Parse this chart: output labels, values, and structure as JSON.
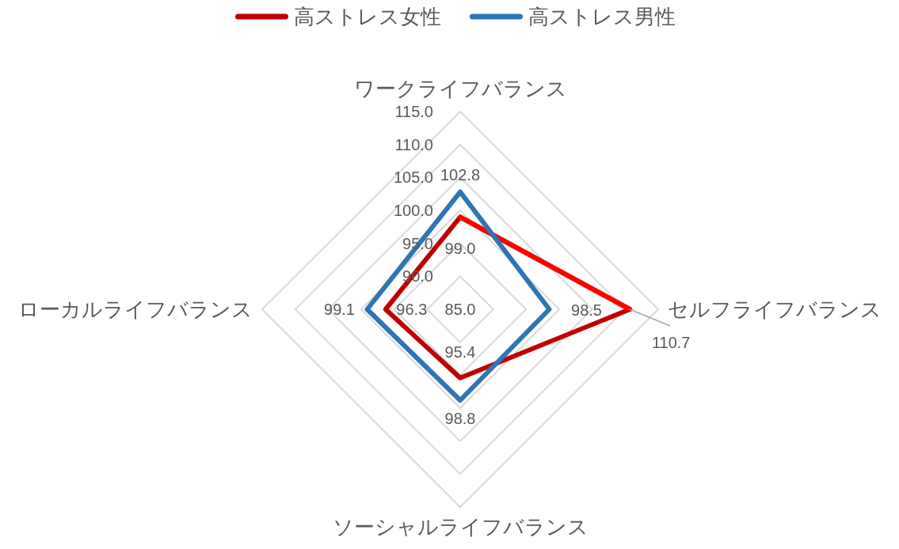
{
  "chart_data": {
    "type": "radar",
    "categories": [
      "ワークライフバランス",
      "セルフライフバランス",
      "ソーシャルライフバランス",
      "ローカルライフバランス"
    ],
    "series": [
      {
        "name": "高ストレス女性",
        "color": "#c00000",
        "colors": [
          "#c00000",
          "#ff0000",
          "#c00000",
          "#c00000"
        ],
        "values": [
          99.0,
          110.7,
          95.4,
          96.3
        ],
        "value_labels": [
          "99.0",
          "110.7",
          "95.4",
          "96.3"
        ]
      },
      {
        "name": "高ストレス男性",
        "color": "#2e75b6",
        "values": [
          102.8,
          98.5,
          98.8,
          99.1
        ],
        "value_labels": [
          "102.8",
          "98.5",
          "98.8",
          "99.1"
        ]
      }
    ],
    "ylim": [
      85,
      115
    ],
    "yticks": [
      {
        "value": 85,
        "label": "85.0"
      },
      {
        "value": 90,
        "label": "90.0"
      },
      {
        "value": 95,
        "label": "95.0"
      },
      {
        "value": 100,
        "label": "100.0"
      },
      {
        "value": 105,
        "label": "105.0"
      },
      {
        "value": 110,
        "label": "110.0"
      },
      {
        "value": 115,
        "label": "115.0"
      }
    ],
    "grid": true,
    "legend": "top"
  }
}
